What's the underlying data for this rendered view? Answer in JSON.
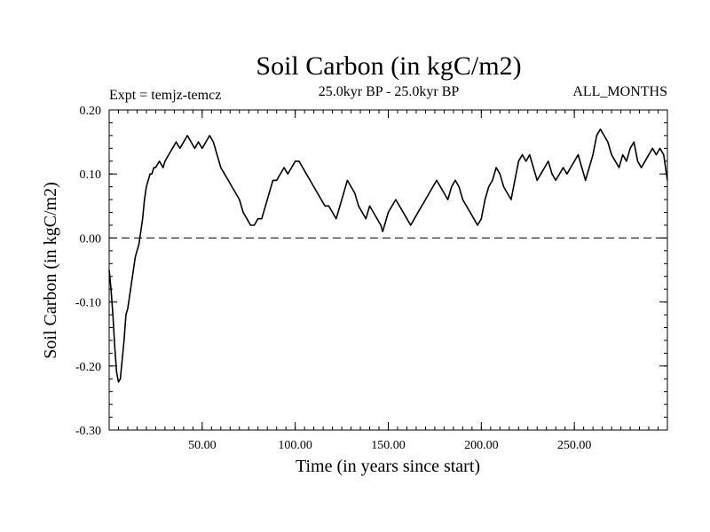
{
  "chart_data": {
    "type": "line",
    "title": "Soil Carbon (in kgC/m2)",
    "subtitle": "25.0kyr BP - 25.0kyr BP",
    "left_label": "Expt = temjz-temcz",
    "right_label": "ALL_MONTHS",
    "xlabel": "Time (in years since start)",
    "ylabel": "Soil Carbon (in kgC/m2)",
    "xlim": [
      0,
      300
    ],
    "ylim": [
      -0.3,
      0.2
    ],
    "xticks": [
      50,
      100,
      150,
      200,
      250
    ],
    "xtick_labels": [
      "50.00",
      "100.00",
      "150.00",
      "200.00",
      "250.00"
    ],
    "yticks": [
      -0.3,
      -0.2,
      -0.1,
      0.0,
      0.1,
      0.2
    ],
    "ytick_labels": [
      "-0.30",
      "-0.20",
      "-0.10",
      "0.00",
      "0.10",
      "0.20"
    ],
    "reference_line": {
      "y": 0.0,
      "style": "dashed"
    },
    "series": [
      {
        "name": "Soil Carbon",
        "color": "#000000",
        "points": [
          [
            0,
            -0.05
          ],
          [
            1,
            -0.08
          ],
          [
            2,
            -0.12
          ],
          [
            3,
            -0.17
          ],
          [
            4,
            -0.21
          ],
          [
            5,
            -0.225
          ],
          [
            6,
            -0.22
          ],
          [
            7,
            -0.19
          ],
          [
            8,
            -0.16
          ],
          [
            9,
            -0.12
          ],
          [
            10,
            -0.11
          ],
          [
            11,
            -0.09
          ],
          [
            12,
            -0.07
          ],
          [
            13,
            -0.05
          ],
          [
            14,
            -0.03
          ],
          [
            15,
            -0.02
          ],
          [
            16,
            -0.01
          ],
          [
            17,
            0.01
          ],
          [
            18,
            0.03
          ],
          [
            19,
            0.06
          ],
          [
            20,
            0.08
          ],
          [
            21,
            0.09
          ],
          [
            22,
            0.1
          ],
          [
            23,
            0.1
          ],
          [
            24,
            0.11
          ],
          [
            25,
            0.11
          ],
          [
            27,
            0.12
          ],
          [
            29,
            0.11
          ],
          [
            30,
            0.12
          ],
          [
            32,
            0.13
          ],
          [
            34,
            0.14
          ],
          [
            36,
            0.15
          ],
          [
            38,
            0.14
          ],
          [
            40,
            0.15
          ],
          [
            42,
            0.16
          ],
          [
            44,
            0.15
          ],
          [
            46,
            0.14
          ],
          [
            48,
            0.15
          ],
          [
            50,
            0.14
          ],
          [
            52,
            0.15
          ],
          [
            54,
            0.16
          ],
          [
            56,
            0.15
          ],
          [
            58,
            0.13
          ],
          [
            60,
            0.11
          ],
          [
            62,
            0.1
          ],
          [
            64,
            0.09
          ],
          [
            66,
            0.08
          ],
          [
            68,
            0.07
          ],
          [
            70,
            0.06
          ],
          [
            72,
            0.04
          ],
          [
            74,
            0.03
          ],
          [
            76,
            0.02
          ],
          [
            78,
            0.02
          ],
          [
            80,
            0.03
          ],
          [
            82,
            0.03
          ],
          [
            84,
            0.05
          ],
          [
            86,
            0.07
          ],
          [
            88,
            0.09
          ],
          [
            90,
            0.09
          ],
          [
            92,
            0.1
          ],
          [
            94,
            0.11
          ],
          [
            96,
            0.1
          ],
          [
            98,
            0.11
          ],
          [
            100,
            0.12
          ],
          [
            102,
            0.12
          ],
          [
            104,
            0.11
          ],
          [
            106,
            0.1
          ],
          [
            108,
            0.09
          ],
          [
            110,
            0.08
          ],
          [
            112,
            0.07
          ],
          [
            114,
            0.06
          ],
          [
            116,
            0.05
          ],
          [
            118,
            0.05
          ],
          [
            120,
            0.04
          ],
          [
            122,
            0.03
          ],
          [
            124,
            0.05
          ],
          [
            126,
            0.07
          ],
          [
            128,
            0.09
          ],
          [
            130,
            0.08
          ],
          [
            132,
            0.07
          ],
          [
            134,
            0.05
          ],
          [
            136,
            0.04
          ],
          [
            138,
            0.03
          ],
          [
            140,
            0.05
          ],
          [
            142,
            0.04
          ],
          [
            144,
            0.03
          ],
          [
            146,
            0.02
          ],
          [
            147,
            0.01
          ],
          [
            148,
            0.02
          ],
          [
            150,
            0.04
          ],
          [
            152,
            0.05
          ],
          [
            154,
            0.06
          ],
          [
            156,
            0.05
          ],
          [
            158,
            0.04
          ],
          [
            160,
            0.03
          ],
          [
            162,
            0.02
          ],
          [
            164,
            0.03
          ],
          [
            166,
            0.04
          ],
          [
            168,
            0.05
          ],
          [
            170,
            0.06
          ],
          [
            172,
            0.07
          ],
          [
            174,
            0.08
          ],
          [
            176,
            0.09
          ],
          [
            178,
            0.08
          ],
          [
            180,
            0.07
          ],
          [
            182,
            0.06
          ],
          [
            184,
            0.08
          ],
          [
            186,
            0.09
          ],
          [
            188,
            0.08
          ],
          [
            190,
            0.06
          ],
          [
            192,
            0.05
          ],
          [
            194,
            0.04
          ],
          [
            196,
            0.03
          ],
          [
            198,
            0.02
          ],
          [
            200,
            0.03
          ],
          [
            202,
            0.06
          ],
          [
            204,
            0.08
          ],
          [
            206,
            0.09
          ],
          [
            208,
            0.11
          ],
          [
            210,
            0.1
          ],
          [
            212,
            0.08
          ],
          [
            214,
            0.07
          ],
          [
            216,
            0.06
          ],
          [
            218,
            0.09
          ],
          [
            220,
            0.12
          ],
          [
            222,
            0.13
          ],
          [
            224,
            0.12
          ],
          [
            226,
            0.13
          ],
          [
            228,
            0.11
          ],
          [
            230,
            0.09
          ],
          [
            232,
            0.1
          ],
          [
            234,
            0.11
          ],
          [
            236,
            0.12
          ],
          [
            238,
            0.1
          ],
          [
            240,
            0.09
          ],
          [
            242,
            0.1
          ],
          [
            244,
            0.11
          ],
          [
            246,
            0.1
          ],
          [
            248,
            0.11
          ],
          [
            250,
            0.12
          ],
          [
            252,
            0.13
          ],
          [
            254,
            0.11
          ],
          [
            256,
            0.09
          ],
          [
            258,
            0.11
          ],
          [
            260,
            0.13
          ],
          [
            262,
            0.16
          ],
          [
            264,
            0.17
          ],
          [
            266,
            0.16
          ],
          [
            268,
            0.15
          ],
          [
            270,
            0.13
          ],
          [
            272,
            0.12
          ],
          [
            274,
            0.11
          ],
          [
            276,
            0.13
          ],
          [
            278,
            0.12
          ],
          [
            280,
            0.14
          ],
          [
            282,
            0.15
          ],
          [
            284,
            0.12
          ],
          [
            286,
            0.11
          ],
          [
            288,
            0.12
          ],
          [
            290,
            0.13
          ],
          [
            292,
            0.14
          ],
          [
            294,
            0.13
          ],
          [
            296,
            0.14
          ],
          [
            298,
            0.13
          ],
          [
            300,
            0.09
          ]
        ]
      }
    ]
  }
}
